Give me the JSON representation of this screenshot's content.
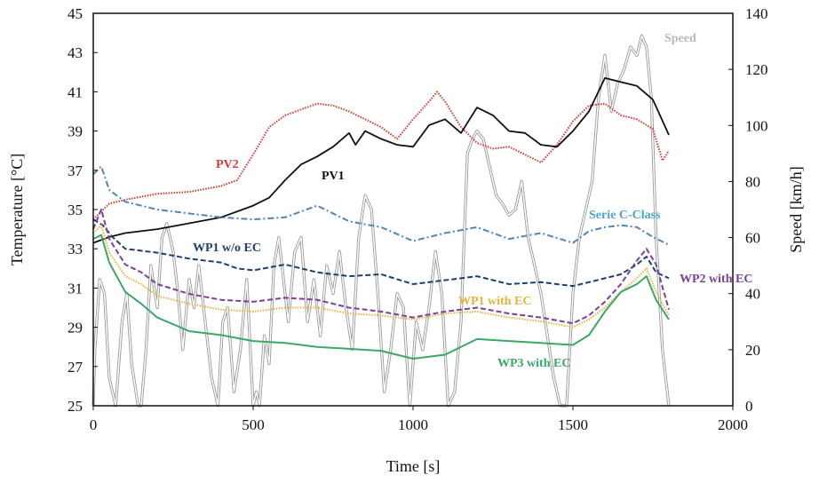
{
  "chart_data": {
    "type": "line",
    "xlabel": "Time [s]",
    "ylabel_left": "Temperature [°C]",
    "ylabel_right": "Speed [km/h]",
    "xlim": [
      0,
      2000
    ],
    "ylim_left": [
      25,
      45
    ],
    "ylim_right": [
      0,
      140
    ],
    "x_ticks": [
      "0",
      "500",
      "1000",
      "1500",
      "2000"
    ],
    "y_left_ticks": [
      "25",
      "27",
      "29",
      "31",
      "33",
      "35",
      "37",
      "39",
      "41",
      "43",
      "45"
    ],
    "y_right_ticks": [
      "0",
      "20",
      "40",
      "60",
      "80",
      "100",
      "120",
      "140"
    ],
    "grid": false,
    "series": [
      {
        "name": "PV2",
        "axis": "left",
        "color": "#d9382e",
        "dash": "dotted",
        "x": [
          0,
          50,
          100,
          200,
          300,
          400,
          450,
          500,
          550,
          600,
          650,
          700,
          750,
          800,
          850,
          900,
          950,
          1000,
          1050,
          1075,
          1100,
          1150,
          1200,
          1250,
          1300,
          1350,
          1400,
          1450,
          1500,
          1550,
          1600,
          1650,
          1700,
          1750,
          1780,
          1800
        ],
        "y": [
          34.5,
          35.3,
          35.5,
          35.8,
          35.9,
          36.2,
          36.5,
          37.8,
          39.2,
          39.8,
          40.1,
          40.4,
          40.3,
          40.0,
          39.6,
          39.2,
          38.6,
          39.6,
          40.5,
          41.0,
          40.5,
          39.2,
          38.4,
          38.1,
          38.2,
          37.8,
          37.4,
          38.3,
          39.5,
          40.3,
          40.4,
          39.8,
          39.6,
          39.1,
          37.5,
          38.0
        ]
      },
      {
        "name": "PV1",
        "axis": "left",
        "color": "#111111",
        "dash": "solid",
        "x": [
          0,
          50,
          100,
          200,
          300,
          400,
          500,
          550,
          600,
          650,
          700,
          750,
          800,
          820,
          850,
          900,
          950,
          1000,
          1050,
          1100,
          1150,
          1200,
          1250,
          1300,
          1350,
          1400,
          1450,
          1500,
          1550,
          1600,
          1650,
          1700,
          1750,
          1800
        ],
        "y": [
          33.3,
          33.6,
          33.8,
          34.0,
          34.3,
          34.6,
          35.2,
          35.6,
          36.5,
          37.3,
          37.7,
          38.2,
          38.9,
          38.3,
          39.0,
          38.6,
          38.3,
          38.2,
          39.3,
          39.6,
          38.9,
          40.2,
          39.8,
          39.0,
          38.9,
          38.3,
          38.2,
          39.0,
          40.0,
          41.7,
          41.5,
          41.3,
          40.6,
          38.8
        ]
      },
      {
        "name": "Serie C-Class",
        "axis": "left",
        "color": "#4f86b8",
        "dash": "dashdot",
        "x": [
          0,
          25,
          50,
          100,
          150,
          200,
          300,
          400,
          500,
          600,
          700,
          800,
          900,
          1000,
          1100,
          1200,
          1300,
          1400,
          1500,
          1550,
          1600,
          1650,
          1700,
          1750,
          1800
        ],
        "y": [
          36.8,
          37.2,
          36.0,
          35.4,
          35.2,
          35.0,
          34.8,
          34.6,
          34.5,
          34.6,
          35.2,
          34.4,
          34.1,
          33.4,
          33.8,
          34.1,
          33.5,
          33.8,
          33.3,
          33.9,
          34.1,
          34.2,
          34.1,
          33.6,
          33.2
        ]
      },
      {
        "name": "WP1 w/o EC",
        "axis": "left",
        "color": "#1f3f6e",
        "dash": "dashed",
        "x": [
          0,
          30,
          60,
          100,
          200,
          300,
          400,
          450,
          500,
          600,
          700,
          800,
          900,
          1000,
          1100,
          1200,
          1300,
          1400,
          1500,
          1600,
          1650,
          1700,
          1730,
          1760,
          1800
        ],
        "y": [
          34.5,
          34.2,
          33.6,
          33.0,
          32.8,
          32.5,
          32.3,
          32.0,
          31.9,
          32.2,
          31.8,
          31.6,
          31.7,
          31.2,
          31.4,
          31.6,
          31.2,
          31.3,
          31.1,
          31.5,
          31.7,
          32.2,
          32.6,
          31.8,
          31.5
        ]
      },
      {
        "name": "WP2 with EC",
        "axis": "left",
        "color": "#7b3fa0",
        "dash": "dashed",
        "x": [
          0,
          25,
          50,
          100,
          150,
          200,
          300,
          400,
          500,
          600,
          700,
          800,
          900,
          1000,
          1100,
          1200,
          1300,
          1400,
          1500,
          1550,
          1600,
          1650,
          1700,
          1730,
          1760,
          1800
        ],
        "y": [
          34.0,
          35.0,
          33.5,
          32.2,
          31.8,
          31.2,
          30.7,
          30.4,
          30.3,
          30.5,
          30.4,
          30.0,
          29.8,
          29.5,
          29.8,
          30.0,
          29.7,
          29.5,
          29.2,
          29.6,
          30.3,
          31.2,
          32.4,
          33.0,
          32.2,
          29.9
        ]
      },
      {
        "name": "WP1 with EC",
        "axis": "left",
        "color": "#e8b33a",
        "dash": "dotted",
        "x": [
          0,
          25,
          50,
          100,
          150,
          200,
          300,
          400,
          500,
          600,
          700,
          800,
          900,
          1000,
          1100,
          1200,
          1300,
          1400,
          1500,
          1550,
          1600,
          1650,
          1700,
          1730,
          1760,
          1800
        ],
        "y": [
          33.8,
          34.2,
          32.8,
          31.6,
          31.2,
          30.6,
          30.2,
          29.9,
          29.8,
          30.0,
          30.0,
          29.7,
          29.6,
          29.4,
          29.7,
          29.8,
          29.5,
          29.3,
          29.0,
          29.4,
          30.0,
          30.8,
          31.5,
          32.0,
          30.8,
          29.6
        ]
      },
      {
        "name": "WP3 with EC",
        "axis": "left",
        "color": "#3aa86a",
        "dash": "solid",
        "x": [
          0,
          25,
          50,
          100,
          150,
          200,
          300,
          400,
          500,
          600,
          700,
          800,
          900,
          1000,
          1100,
          1200,
          1300,
          1400,
          1500,
          1550,
          1600,
          1650,
          1700,
          1730,
          1760,
          1800
        ],
        "y": [
          33.5,
          33.7,
          32.3,
          30.8,
          30.2,
          29.5,
          28.8,
          28.6,
          28.3,
          28.2,
          28.0,
          27.9,
          27.8,
          27.4,
          27.6,
          28.4,
          28.3,
          28.2,
          28.1,
          28.6,
          29.8,
          30.8,
          31.2,
          31.6,
          30.4,
          29.4
        ]
      },
      {
        "name": "Speed",
        "axis": "right",
        "color": "#b8b8b8",
        "dash": "solid",
        "x": [
          0,
          5,
          20,
          35,
          50,
          70,
          90,
          105,
          120,
          140,
          150,
          165,
          180,
          200,
          215,
          230,
          250,
          265,
          280,
          300,
          315,
          330,
          350,
          370,
          390,
          405,
          420,
          440,
          460,
          480,
          500,
          510,
          520,
          535,
          550,
          565,
          580,
          595,
          610,
          630,
          650,
          670,
          690,
          710,
          730,
          750,
          770,
          790,
          810,
          830,
          850,
          870,
          890,
          910,
          930,
          950,
          970,
          990,
          1010,
          1030,
          1050,
          1070,
          1090,
          1110,
          1130,
          1150,
          1170,
          1185,
          1200,
          1220,
          1240,
          1260,
          1280,
          1300,
          1320,
          1340,
          1360,
          1380,
          1400,
          1420,
          1440,
          1460,
          1480,
          1500,
          1520,
          1540,
          1560,
          1580,
          1600,
          1620,
          1640,
          1660,
          1680,
          1700,
          1715,
          1730,
          1745,
          1760,
          1780,
          1800
        ],
        "y": [
          0,
          20,
          45,
          40,
          10,
          0,
          30,
          40,
          15,
          0,
          0,
          20,
          50,
          35,
          60,
          65,
          55,
          40,
          20,
          45,
          35,
          50,
          30,
          10,
          0,
          30,
          35,
          5,
          20,
          45,
          0,
          5,
          0,
          25,
          15,
          50,
          60,
          45,
          30,
          55,
          60,
          30,
          45,
          25,
          50,
          40,
          55,
          35,
          20,
          60,
          75,
          70,
          40,
          5,
          20,
          40,
          35,
          0,
          30,
          20,
          35,
          55,
          40,
          0,
          5,
          30,
          90,
          95,
          98,
          95,
          85,
          75,
          72,
          68,
          70,
          80,
          60,
          50,
          40,
          25,
          10,
          0,
          0,
          40,
          60,
          70,
          80,
          110,
          125,
          105,
          115,
          120,
          128,
          125,
          132,
          128,
          110,
          60,
          20,
          0
        ]
      }
    ]
  },
  "labels": {
    "pv2": "PV2",
    "pv1": "PV1",
    "serie_c": "Serie C-Class",
    "wp1_wo": "WP1 w/o EC",
    "wp2": "WP2 with EC",
    "wp1_with": "WP1 with EC",
    "wp3": "WP3 with EC",
    "speed": "Speed"
  }
}
